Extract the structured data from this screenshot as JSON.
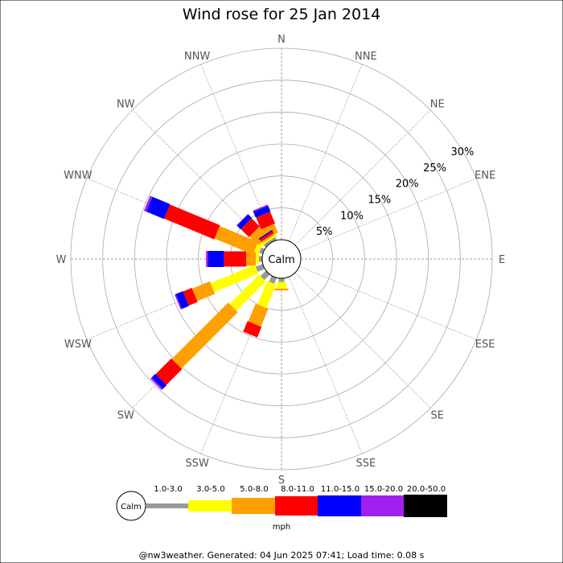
{
  "page": {
    "title": "Wind rose for 25 Jan 2014",
    "footer": "@nw3weather. Generated: 04 Jun 2025 07:41; Load time: 0.08 s"
  },
  "chart_data": {
    "type": "wind-rose",
    "title": "Wind rose for 25 Jan 2014",
    "directions": [
      "N",
      "NNE",
      "NE",
      "ENE",
      "E",
      "ESE",
      "SE",
      "SSE",
      "S",
      "SSW",
      "SW",
      "WSW",
      "W",
      "WNW",
      "NW",
      "NNW"
    ],
    "radial_ticks": [
      "5%",
      "10%",
      "15%",
      "20%",
      "25%",
      "30%"
    ],
    "radial_max": 30,
    "center_label": "Calm",
    "legend": {
      "calm_label": "Calm",
      "unit": "mph",
      "bins": [
        {
          "label": "1.0-3.0",
          "color": "#999999"
        },
        {
          "label": "3.0-5.0",
          "color": "#ffff00"
        },
        {
          "label": "5.0-8.0",
          "color": "#ffa000"
        },
        {
          "label": "8.0-11.0",
          "color": "#ff0000"
        },
        {
          "label": "11.0-15.0",
          "color": "#0000ff"
        },
        {
          "label": "15.0-20.0",
          "color": "#a020f0"
        },
        {
          "label": "20.0-50.0",
          "color": "#000000"
        }
      ]
    },
    "series": [
      {
        "direction": "NNW",
        "values": [
          0.5,
          0.5,
          1.5,
          2.0,
          1.0,
          0.2,
          0
        ]
      },
      {
        "direction": "NW",
        "values": [
          0.5,
          0.5,
          2.0,
          1.8,
          0.8,
          0.1,
          0
        ]
      },
      {
        "direction": "NW",
        "offset_deg": 12,
        "values": [
          0.4,
          0.3,
          0.3,
          0.4,
          0.2,
          0,
          0
        ]
      },
      {
        "direction": "WNW",
        "values": [
          0.6,
          0.8,
          6.5,
          8.5,
          3.0,
          0.4,
          0
        ]
      },
      {
        "direction": "W",
        "values": [
          0.5,
          0.5,
          1.5,
          3.5,
          2.5,
          0.3,
          0
        ]
      },
      {
        "direction": "WSW",
        "values": [
          1.2,
          7.5,
          3.0,
          1.5,
          1.2,
          0.2,
          0
        ]
      },
      {
        "direction": "SW",
        "values": [
          1.2,
          6.5,
          12.5,
          3.5,
          0.8,
          0.3,
          0
        ]
      },
      {
        "direction": "SSW",
        "values": [
          1.0,
          4.0,
          3.0,
          1.8,
          0,
          0,
          0
        ]
      },
      {
        "direction": "S",
        "values": [
          0.6,
          1.0,
          0.3,
          0,
          0,
          0,
          0
        ]
      }
    ]
  }
}
